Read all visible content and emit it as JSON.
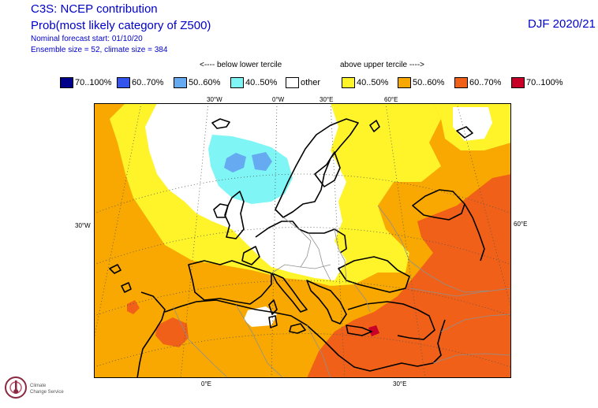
{
  "header": {
    "line1": "C3S: NCEP contribution",
    "line2": "Prob(most likely category of Z500)",
    "line3": "Nominal forecast start: 01/10/20",
    "line4": "Ensemble size = 52, climate size = 384",
    "season": "DJF 2020/21"
  },
  "key": {
    "below": "<---- below lower tercile",
    "above": "above upper tercile ---->"
  },
  "legend": [
    {
      "label": "70..100%",
      "color": "#00008b"
    },
    {
      "label": "60..70%",
      "color": "#3355ee"
    },
    {
      "label": "50..60%",
      "color": "#66aaf2"
    },
    {
      "label": "40..50%",
      "color": "#7ff5f5"
    },
    {
      "label": "other",
      "color": "#ffffff"
    },
    {
      "label": "40..50%",
      "color": "#fff42a"
    },
    {
      "label": "50..60%",
      "color": "#f8a800"
    },
    {
      "label": "60..70%",
      "color": "#f06018"
    },
    {
      "label": "70..100%",
      "color": "#c80028"
    }
  ],
  "gridlabels": {
    "top": [
      "30°W",
      "0°W",
      "30°E",
      "60°E"
    ],
    "left": "30°W",
    "right": "60°E",
    "bottom": [
      "0°E",
      "30°E"
    ]
  },
  "logo": {
    "line1": "Climate",
    "line2": "Change Service"
  }
}
